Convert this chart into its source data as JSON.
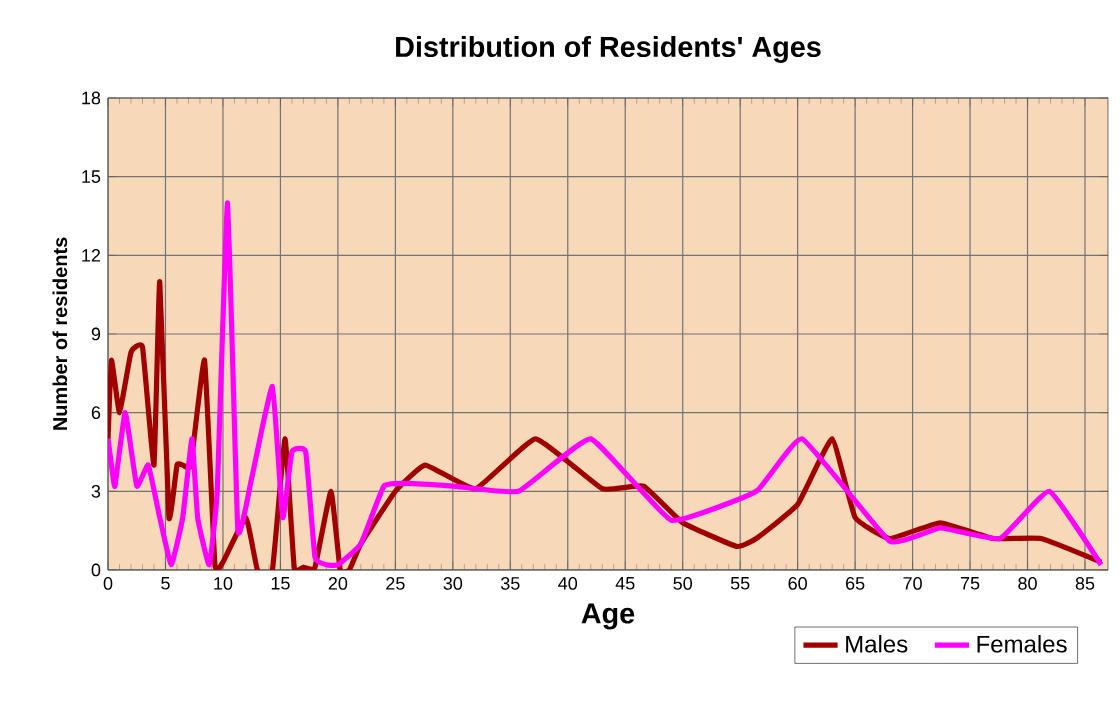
{
  "chart_data": {
    "type": "line",
    "title": "Distribution of Residents' Ages",
    "xlabel": "Age",
    "ylabel": "Number of residents",
    "xlim": [
      0,
      87
    ],
    "xticks": [
      0,
      5,
      10,
      15,
      20,
      25,
      30,
      35,
      40,
      45,
      50,
      55,
      60,
      65,
      70,
      75,
      80,
      85
    ],
    "ylim": [
      0,
      18
    ],
    "yticks": [
      0,
      3,
      6,
      9,
      12,
      15,
      18
    ],
    "grid": true,
    "legend": "bottom right",
    "marker": "none",
    "line_style": "solid",
    "series": [
      {
        "name": "Males",
        "color": "#a00000",
        "x": [
          0,
          0.3,
          1,
          2,
          3,
          4,
          4.5,
          5.3,
          6,
          6.5,
          7.2,
          8.4,
          9.3,
          10,
          12,
          13,
          14.3,
          15.4,
          16.2,
          17,
          18,
          19.4,
          20.2,
          21,
          22,
          25,
          27.6,
          32,
          37.2,
          43,
          46.6,
          50,
          54.7,
          56.4,
          60,
          63,
          65,
          68,
          72.4,
          77,
          81.2,
          86.4
        ],
        "values": [
          5,
          8,
          6,
          8.3,
          8.5,
          4,
          11,
          2,
          4,
          4,
          4,
          8,
          0.2,
          0.3,
          2,
          0,
          0,
          5,
          0.1,
          0.1,
          0.1,
          3,
          0,
          0,
          1,
          3,
          4,
          3.1,
          5,
          3.1,
          3.2,
          1.8,
          0.9,
          1.2,
          2.5,
          5,
          2,
          1.2,
          1.8,
          1.2,
          1.2,
          0.3
        ]
      },
      {
        "name": "Females",
        "color": "#ff00ff",
        "x": [
          0,
          0.3,
          0.6,
          1.5,
          2.5,
          3.5,
          4.5,
          5.5,
          6.5,
          7.3,
          7.8,
          8.8,
          9.5,
          10.4,
          11.3,
          12.5,
          14.3,
          15.2,
          16,
          17.2,
          18,
          19,
          20,
          22,
          24,
          26,
          30,
          35.7,
          42,
          49,
          56.4,
          60.4,
          68,
          72.4,
          77.6,
          81.9,
          86.4
        ],
        "values": [
          5,
          4,
          3.2,
          6,
          3.2,
          4,
          2,
          0.2,
          2,
          5,
          2,
          0.2,
          3,
          14,
          1.5,
          3.5,
          7,
          2,
          4.5,
          4.5,
          0.5,
          0.2,
          0.2,
          1,
          3.2,
          3.3,
          3.2,
          3,
          5,
          1.9,
          3,
          5,
          1.1,
          1.6,
          1.2,
          3,
          0.2
        ]
      }
    ]
  }
}
